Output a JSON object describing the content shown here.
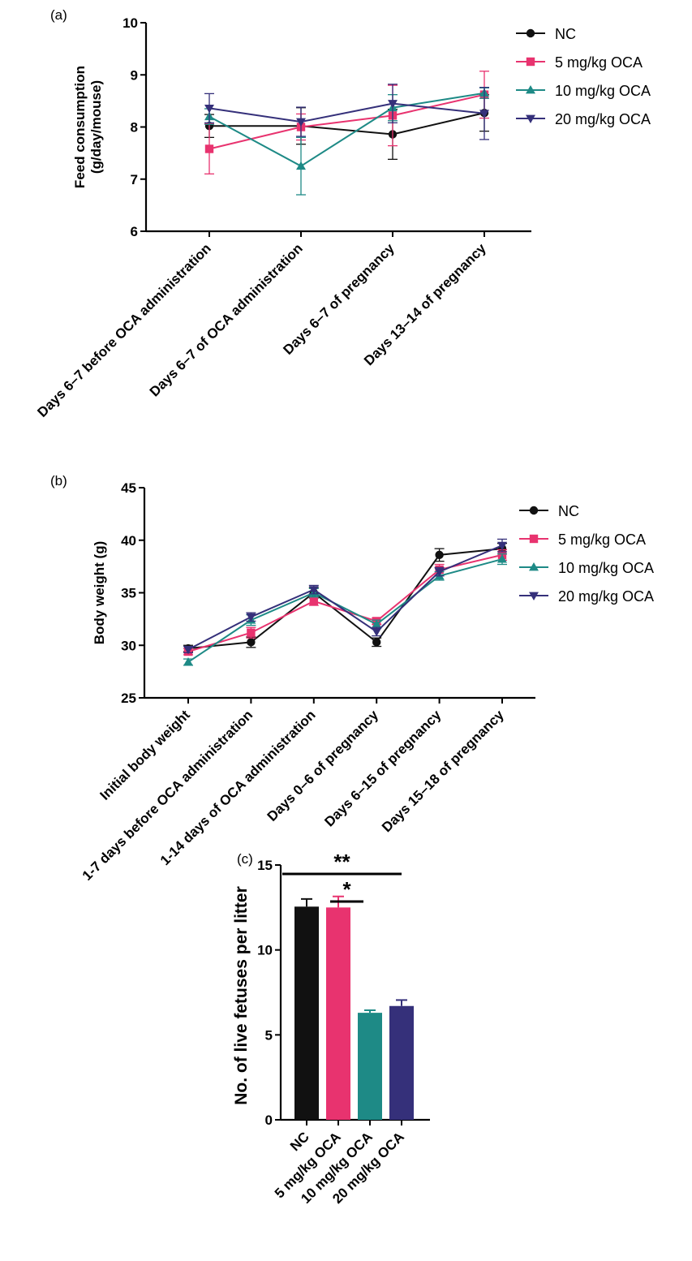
{
  "colors": {
    "NC": "#111111",
    "5 mg/kg OCA": "#e8336f",
    "10 mg/kg OCA": "#1e8a86",
    "20 mg/kg OCA": "#35307a"
  },
  "chart_data": [
    {
      "panel": "(a)",
      "type": "line",
      "title": "",
      "xlabel": "",
      "ylabel": "Feed consumption (g/day/mouse)",
      "ylabel_lines": [
        "Feed consumption",
        "(g/day/mouse)"
      ],
      "ylim": [
        6,
        10
      ],
      "yticks": [
        6,
        7,
        8,
        9,
        10
      ],
      "categories": [
        "Days 6–7 before OCA administration",
        "Days 6–7 of OCA administration",
        "Days 6–7 of pregnancy",
        "Days 13–14 of pregnancy"
      ],
      "legend": "top-right",
      "series": [
        {
          "name": "NC",
          "marker": "circle",
          "values": [
            8.02,
            8.02,
            7.86,
            8.27
          ],
          "errors": [
            0.22,
            0.35,
            0.48,
            0.35
          ]
        },
        {
          "name": "5 mg/kg OCA",
          "marker": "square",
          "values": [
            7.58,
            8.0,
            8.22,
            8.62
          ],
          "errors": [
            0.48,
            0.25,
            0.58,
            0.45
          ]
        },
        {
          "name": "10 mg/kg OCA",
          "marker": "triangle-up",
          "values": [
            8.2,
            7.25,
            8.37,
            8.65
          ],
          "errors": [
            0.15,
            0.55,
            0.25,
            0.1
          ]
        },
        {
          "name": "20 mg/kg OCA",
          "marker": "triangle-down",
          "values": [
            8.36,
            8.1,
            8.45,
            8.26
          ],
          "errors": [
            0.28,
            0.28,
            0.37,
            0.5
          ]
        }
      ]
    },
    {
      "panel": "(b)",
      "type": "line",
      "title": "",
      "xlabel": "",
      "ylabel": "Body weight (g)",
      "ylim": [
        25,
        45
      ],
      "yticks": [
        25,
        30,
        35,
        40,
        45
      ],
      "categories": [
        "Initial body weight",
        "1-7 days before OCA administration",
        "1-14 days of OCA administration",
        "Days 0–6 of pregnancy",
        "Days 6–15 of pregnancy",
        "Days 15–18 of pregnancy"
      ],
      "legend": "top-right",
      "series": [
        {
          "name": "NC",
          "marker": "circle",
          "values": [
            29.7,
            30.3,
            35.0,
            30.3,
            38.6,
            39.2
          ],
          "errors": [
            0.3,
            0.5,
            0.5,
            0.4,
            0.6,
            0.5
          ]
        },
        {
          "name": "5 mg/kg OCA",
          "marker": "square",
          "values": [
            29.4,
            31.2,
            34.2,
            32.3,
            37.2,
            38.6
          ],
          "errors": [
            0.3,
            0.5,
            0.4,
            0.3,
            0.5,
            0.5
          ]
        },
        {
          "name": "10 mg/kg OCA",
          "marker": "triangle-up",
          "values": [
            28.4,
            32.4,
            35.0,
            32.0,
            36.6,
            38.2
          ],
          "errors": [
            0.3,
            0.5,
            0.4,
            0.4,
            0.4,
            0.5
          ]
        },
        {
          "name": "20 mg/kg OCA",
          "marker": "triangle-down",
          "values": [
            29.6,
            32.7,
            35.3,
            31.3,
            37.0,
            39.5
          ],
          "errors": [
            0.3,
            0.4,
            0.4,
            0.4,
            0.4,
            0.6
          ]
        }
      ]
    },
    {
      "panel": "(c)",
      "type": "bar",
      "title": "",
      "xlabel": "",
      "ylabel": "No. of live fetuses per litter",
      "ylim": [
        0,
        15
      ],
      "yticks": [
        0,
        5,
        10,
        15
      ],
      "categories": [
        "NC",
        "5 mg/kg OCA",
        "10 mg/kg OCA",
        "20 mg/kg OCA"
      ],
      "values": [
        12.55,
        12.5,
        6.3,
        6.7
      ],
      "errors": [
        0.45,
        0.65,
        0.15,
        0.35
      ],
      "significance": [
        {
          "from": 0,
          "to": 3,
          "label": "**"
        },
        {
          "from": 1,
          "to": 2,
          "label": "*"
        }
      ]
    }
  ]
}
